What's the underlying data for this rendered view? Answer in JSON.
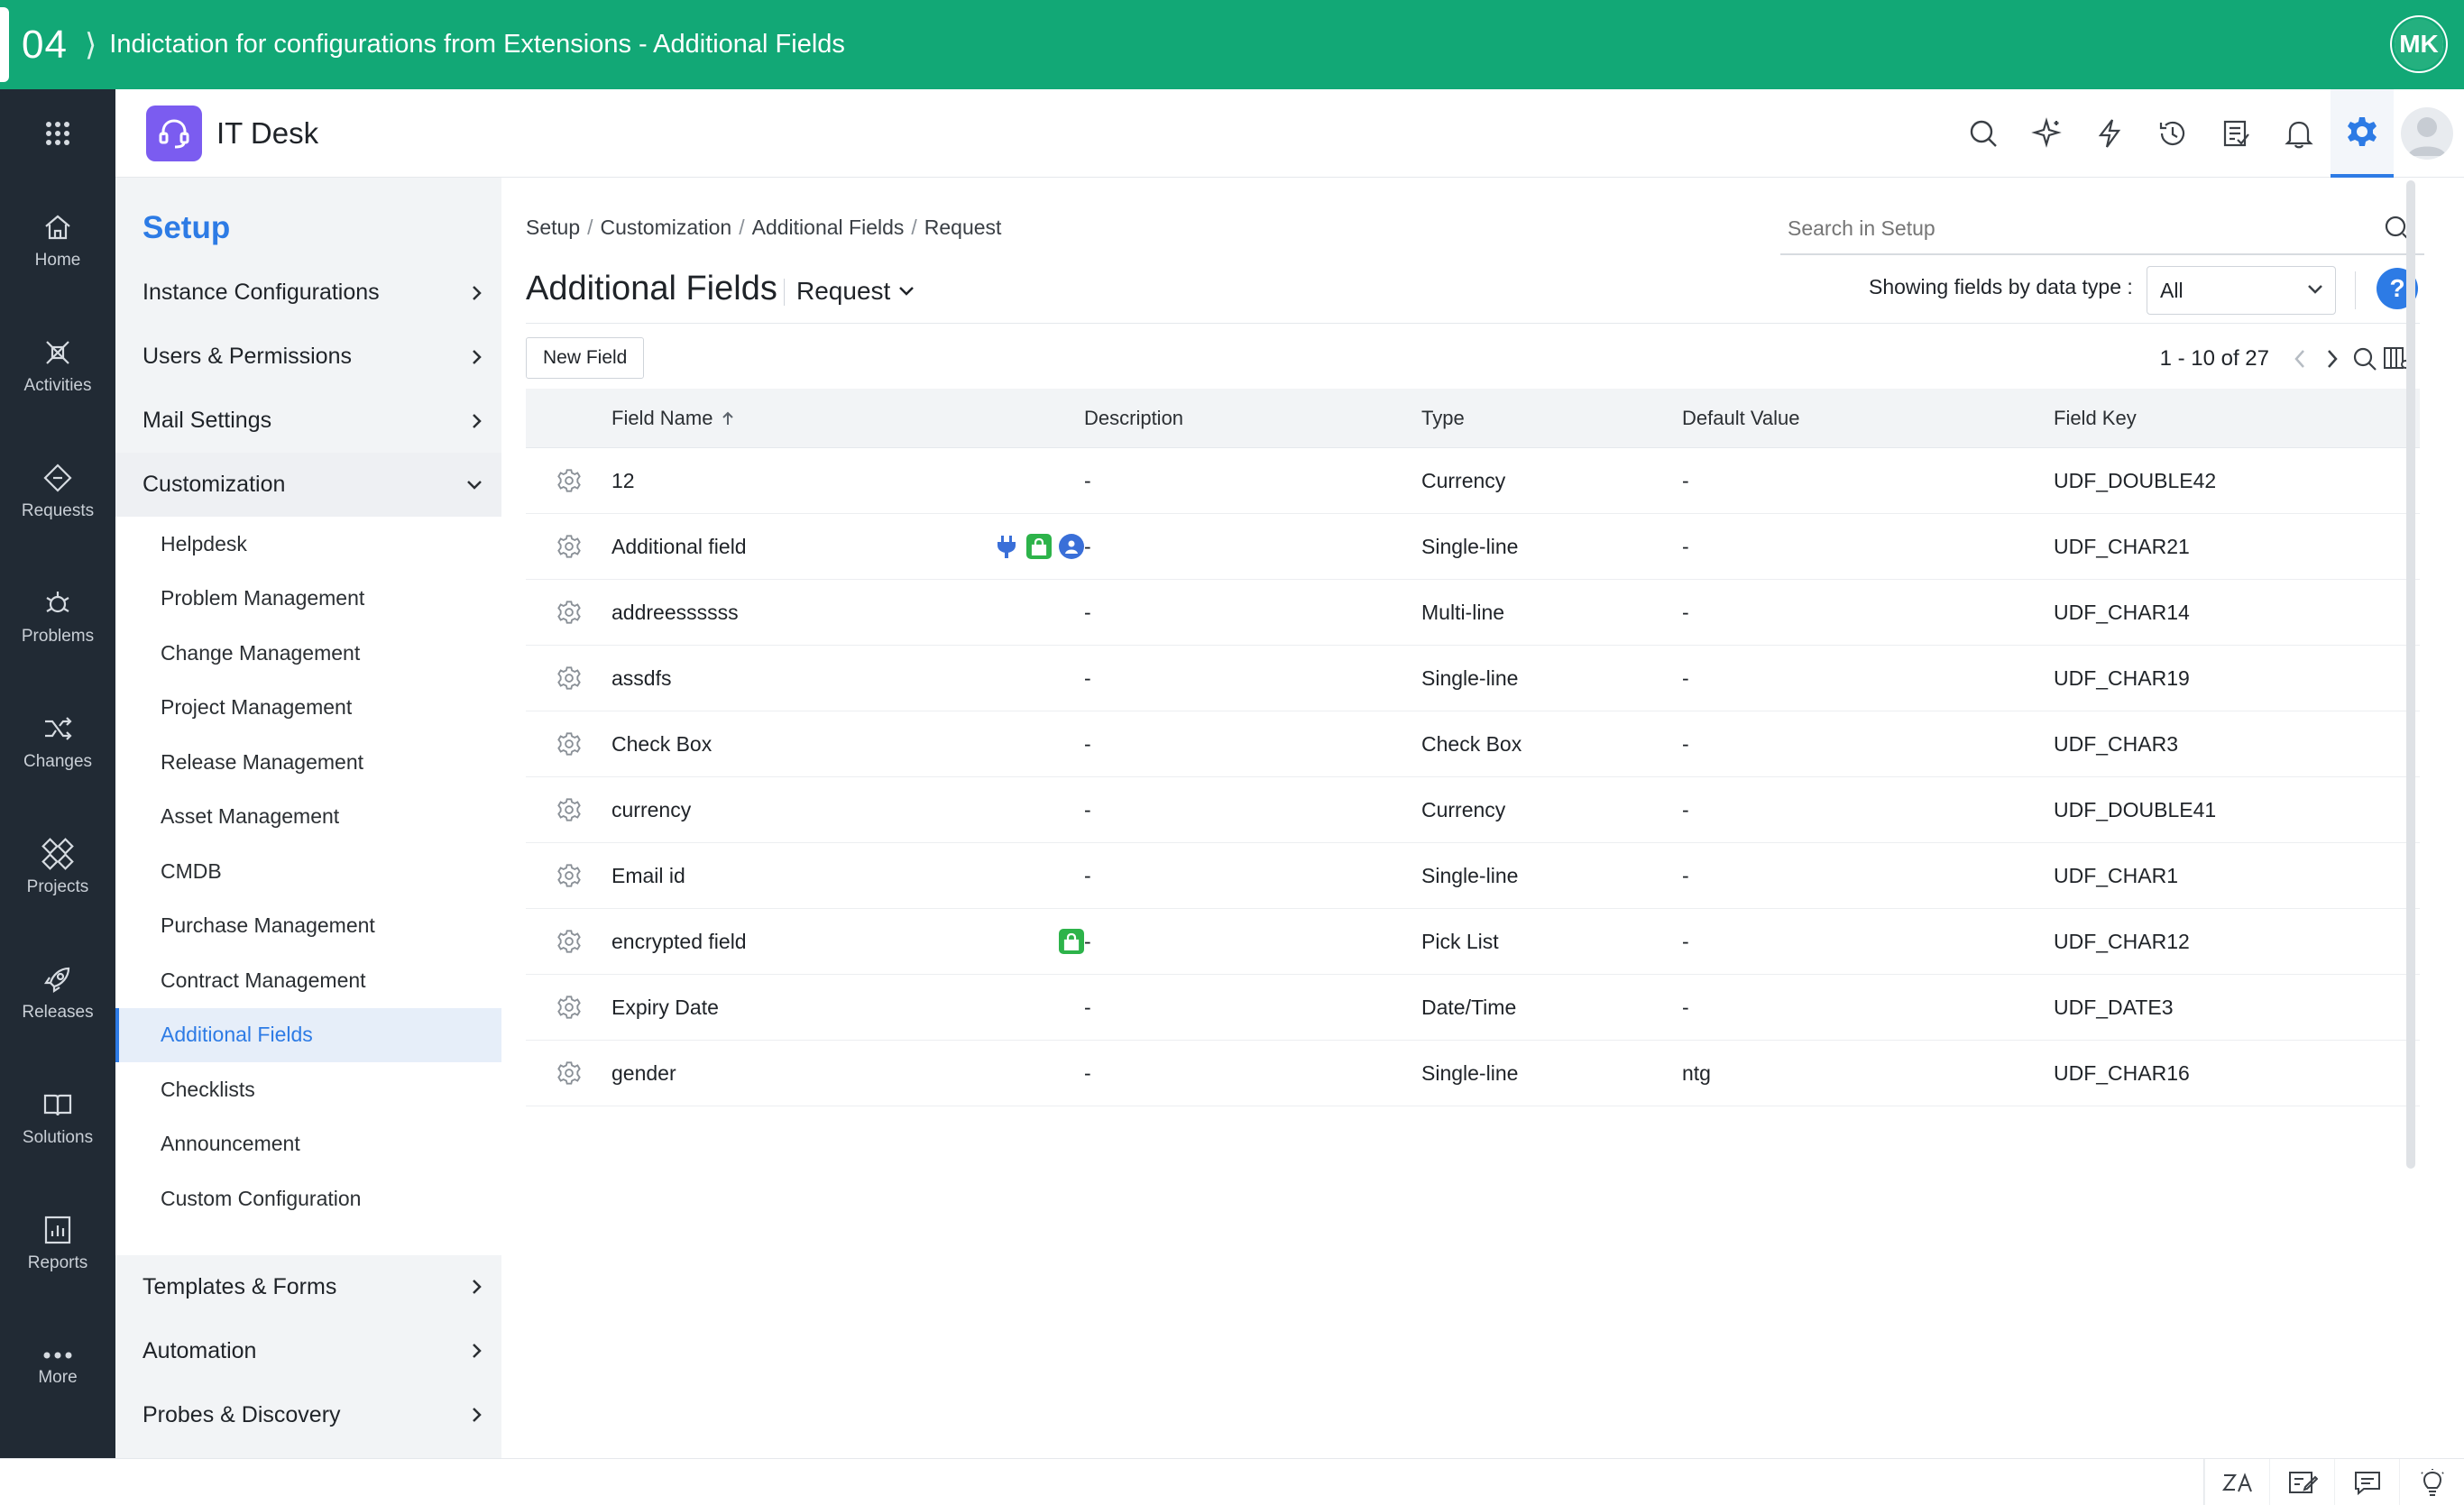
{
  "banner": {
    "step": "04",
    "title": "Indictation for configurations from Extensions - Additional Fields",
    "avatar": "MK"
  },
  "rail": {
    "items": [
      {
        "label": "Home",
        "icon": "home-icon"
      },
      {
        "label": "Activities",
        "icon": "activities-icon"
      },
      {
        "label": "Requests",
        "icon": "requests-icon"
      },
      {
        "label": "Problems",
        "icon": "problems-icon"
      },
      {
        "label": "Changes",
        "icon": "changes-icon"
      },
      {
        "label": "Projects",
        "icon": "projects-icon"
      },
      {
        "label": "Releases",
        "icon": "releases-icon"
      },
      {
        "label": "Solutions",
        "icon": "solutions-icon"
      },
      {
        "label": "Reports",
        "icon": "reports-icon"
      },
      {
        "label": "More",
        "icon": "more-icon"
      }
    ]
  },
  "header": {
    "app_name": "IT Desk"
  },
  "setup": {
    "title": "Setup",
    "groups_top": [
      "Instance Configurations",
      "Users & Permissions",
      "Mail Settings"
    ],
    "open_group": "Customization",
    "subitems": [
      "Helpdesk",
      "Problem Management",
      "Change Management",
      "Project Management",
      "Release Management",
      "Asset Management",
      "CMDB",
      "Purchase Management",
      "Contract Management",
      "Additional Fields",
      "Checklists",
      "Announcement",
      "Custom Configuration"
    ],
    "groups_bottom": [
      "Templates & Forms",
      "Automation",
      "Probes & Discovery"
    ]
  },
  "main": {
    "breadcrumb": [
      "Setup",
      "Customization",
      "Additional Fields",
      "Request"
    ],
    "search_placeholder": "Search in Setup",
    "title": "Additional Fields",
    "module": "Request",
    "filter_label": "Showing fields by data type :",
    "filter_value": "All",
    "help": "?",
    "new_field": "New Field",
    "pager": "1 - 10 of 27"
  },
  "table": {
    "columns": [
      "Field Name",
      "Description",
      "Type",
      "Default Value",
      "Field Key"
    ],
    "rows": [
      {
        "name": "12",
        "desc": "-",
        "type": "Currency",
        "def": "-",
        "key": "UDF_DOUBLE42"
      },
      {
        "name": "Additional field",
        "desc": "-",
        "type": "Single-line",
        "def": "-",
        "key": "UDF_CHAR21"
      },
      {
        "name": "addreessssss",
        "desc": "-",
        "type": "Multi-line",
        "def": "-",
        "key": "UDF_CHAR14"
      },
      {
        "name": "assdfs",
        "desc": "-",
        "type": "Single-line",
        "def": "-",
        "key": "UDF_CHAR19"
      },
      {
        "name": "Check Box",
        "desc": "-",
        "type": "Check Box",
        "def": "-",
        "key": "UDF_CHAR3"
      },
      {
        "name": "currency",
        "desc": "-",
        "type": "Currency",
        "def": "-",
        "key": "UDF_DOUBLE41"
      },
      {
        "name": "Email id",
        "desc": "-",
        "type": "Single-line",
        "def": "-",
        "key": "UDF_CHAR1"
      },
      {
        "name": "encrypted field",
        "desc": "-",
        "type": "Pick List",
        "def": "-",
        "key": "UDF_CHAR12"
      },
      {
        "name": "Expiry Date",
        "desc": "-",
        "type": "Date/Time",
        "def": "-",
        "key": "UDF_DATE3"
      },
      {
        "name": "gender",
        "desc": "-",
        "type": "Single-line",
        "def": "ntg",
        "key": "UDF_CHAR16"
      }
    ]
  },
  "colors": {
    "banner": "#12a876",
    "rail": "#212a34",
    "accent": "#2d7be5",
    "logo": "#7b5cf0",
    "lock": "#2db34a"
  }
}
